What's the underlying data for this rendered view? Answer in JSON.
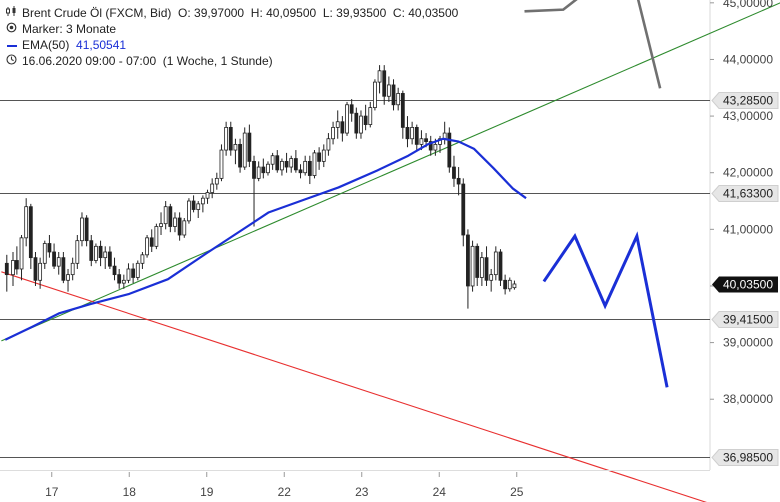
{
  "header": {
    "instrument": "Brent Crude Öl (FXCM, Bid)",
    "ohlc_o": "O: 39,97000",
    "ohlc_h": "H: 40,09500",
    "ohlc_l": "L: 39,93500",
    "ohlc_c": "C: 40,03500",
    "marker": "Marker: 3 Monate",
    "ema_label": "EMA(50)",
    "ema_value": "41,50541",
    "range": "16.06.2020 09:00 - 07:00",
    "interval": "(1 Woche, 1 Stunde)"
  },
  "icons": {
    "instrument": "candlestick-icon",
    "marker": "target-icon",
    "time": "clock-icon"
  },
  "colors": {
    "ema": "#1a2fd6",
    "support_trend": "#2e8b2e",
    "resistance_trend": "#e83030",
    "projection_gray": "#707070",
    "projection_blue": "#1a2fd6",
    "candle": "#222222",
    "level_line": "#555555",
    "current_price_bg": "#111111"
  },
  "chart_data": {
    "type": "candlestick",
    "y_axis": {
      "ylim": [
        36.75,
        45.05
      ],
      "ticks": [
        38,
        39,
        40,
        41,
        42,
        43,
        44,
        45
      ],
      "tick_labels": [
        "38,00000",
        "39,00000",
        "40,00000",
        "41,00000",
        "42,00000",
        "43,00000",
        "44,00000",
        "45,00000"
      ]
    },
    "x_axis": {
      "labels": [
        "17",
        "18",
        "19",
        "22",
        "23",
        "24",
        "25"
      ],
      "day_index": [
        0.5,
        1.5,
        2.5,
        3.5,
        4.5,
        5.5,
        6.5
      ]
    },
    "horizontal_levels": [
      {
        "value": 43.285,
        "label": "43,28500"
      },
      {
        "value": 41.633,
        "label": "41,63300"
      },
      {
        "value": 39.415,
        "label": "39,41500"
      },
      {
        "value": 36.985,
        "label": "36,98500"
      }
    ],
    "current_price": {
      "value": 40.035,
      "label": "40,03500"
    },
    "trendlines": [
      {
        "name": "support",
        "color_key": "support_trend",
        "points": [
          [
            -0.15,
            39.03
          ],
          [
            9.9,
            45.0
          ]
        ]
      },
      {
        "name": "resistance",
        "color_key": "resistance_trend",
        "points": [
          [
            -0.15,
            40.25
          ],
          [
            9.3,
            36.02
          ]
        ]
      }
    ],
    "projections": [
      {
        "name": "projection-gray",
        "color_key": "projection_gray",
        "points": [
          [
            6.6,
            44.85
          ],
          [
            7.1,
            44.88
          ],
          [
            7.4,
            45.2
          ],
          [
            8.05,
            45.15
          ],
          [
            8.35,
            43.49
          ]
        ]
      },
      {
        "name": "projection-blue",
        "color_key": "projection_blue",
        "points": [
          [
            6.85,
            40.08
          ],
          [
            7.25,
            40.88
          ],
          [
            7.64,
            39.65
          ],
          [
            8.05,
            40.88
          ],
          [
            8.44,
            38.21
          ]
        ]
      }
    ],
    "ema_series": [
      [
        -0.1,
        39.05
      ],
      [
        0.25,
        39.28
      ],
      [
        0.6,
        39.52
      ],
      [
        1.0,
        39.68
      ],
      [
        1.5,
        39.86
      ],
      [
        2.0,
        40.12
      ],
      [
        2.5,
        40.58
      ],
      [
        2.9,
        40.94
      ],
      [
        3.3,
        41.3
      ],
      [
        3.75,
        41.52
      ],
      [
        4.2,
        41.74
      ],
      [
        4.7,
        42.04
      ],
      [
        5.1,
        42.3
      ],
      [
        5.35,
        42.5
      ],
      [
        5.55,
        42.6
      ],
      [
        5.75,
        42.55
      ],
      [
        5.95,
        42.42
      ],
      [
        6.2,
        42.08
      ],
      [
        6.45,
        41.72
      ],
      [
        6.62,
        41.55
      ]
    ],
    "candles": [
      [
        -0.08,
        40.4,
        40.55,
        39.9,
        40.2
      ],
      [
        0.0,
        40.2,
        40.6,
        40.0,
        40.45
      ],
      [
        0.05,
        40.45,
        40.7,
        40.2,
        40.3
      ],
      [
        0.11,
        40.3,
        40.9,
        40.1,
        40.85
      ],
      [
        0.17,
        40.85,
        41.55,
        40.7,
        41.4
      ],
      [
        0.23,
        41.4,
        41.45,
        40.3,
        40.5
      ],
      [
        0.29,
        40.5,
        40.6,
        40.0,
        40.1
      ],
      [
        0.35,
        40.1,
        40.5,
        39.95,
        40.4
      ],
      [
        0.41,
        40.4,
        40.8,
        40.3,
        40.75
      ],
      [
        0.47,
        40.75,
        40.9,
        40.5,
        40.6
      ],
      [
        0.53,
        40.6,
        40.75,
        40.3,
        40.35
      ],
      [
        0.59,
        40.35,
        40.6,
        40.2,
        40.5
      ],
      [
        0.65,
        40.5,
        40.6,
        40.05,
        40.1
      ],
      [
        0.71,
        40.1,
        40.3,
        39.9,
        40.2
      ],
      [
        0.77,
        40.2,
        40.5,
        40.1,
        40.4
      ],
      [
        0.83,
        40.4,
        40.9,
        40.3,
        40.8
      ],
      [
        0.89,
        40.8,
        41.3,
        40.7,
        41.2
      ],
      [
        0.95,
        41.2,
        41.25,
        40.7,
        40.8
      ],
      [
        1.01,
        40.8,
        40.9,
        40.35,
        40.45
      ],
      [
        1.07,
        40.45,
        40.75,
        40.4,
        40.7
      ],
      [
        1.13,
        40.7,
        40.8,
        40.35,
        40.5
      ],
      [
        1.19,
        40.5,
        40.7,
        40.3,
        40.6
      ],
      [
        1.25,
        40.6,
        40.7,
        40.3,
        40.35
      ],
      [
        1.31,
        40.35,
        40.5,
        40.1,
        40.2
      ],
      [
        1.37,
        40.2,
        40.3,
        39.95,
        40.05
      ],
      [
        1.43,
        40.05,
        40.2,
        39.95,
        40.1
      ],
      [
        1.49,
        40.1,
        40.4,
        40.05,
        40.3
      ],
      [
        1.55,
        40.3,
        40.4,
        40.05,
        40.15
      ],
      [
        1.61,
        40.15,
        40.45,
        40.1,
        40.4
      ],
      [
        1.67,
        40.4,
        40.6,
        40.3,
        40.55
      ],
      [
        1.73,
        40.55,
        40.9,
        40.5,
        40.85
      ],
      [
        1.79,
        40.85,
        41.0,
        40.6,
        40.7
      ],
      [
        1.85,
        40.7,
        41.1,
        40.65,
        41.05
      ],
      [
        1.91,
        41.05,
        41.3,
        40.9,
        41.1
      ],
      [
        1.97,
        41.1,
        41.5,
        41.0,
        41.4
      ],
      [
        2.03,
        41.4,
        41.45,
        40.95,
        41.05
      ],
      [
        2.09,
        41.05,
        41.3,
        40.95,
        41.2
      ],
      [
        2.15,
        41.2,
        41.3,
        40.8,
        40.9
      ],
      [
        2.21,
        40.9,
        41.2,
        40.85,
        41.15
      ],
      [
        2.27,
        41.15,
        41.55,
        41.1,
        41.5
      ],
      [
        2.33,
        41.5,
        41.6,
        41.3,
        41.35
      ],
      [
        2.39,
        41.35,
        41.5,
        41.2,
        41.45
      ],
      [
        2.45,
        41.45,
        41.6,
        41.3,
        41.55
      ],
      [
        2.51,
        41.55,
        41.7,
        41.45,
        41.65
      ],
      [
        2.57,
        41.65,
        41.9,
        41.55,
        41.8
      ],
      [
        2.63,
        41.8,
        42.0,
        41.7,
        41.9
      ],
      [
        2.69,
        41.9,
        42.5,
        41.85,
        42.4
      ],
      [
        2.75,
        42.4,
        42.9,
        42.3,
        42.8
      ],
      [
        2.81,
        42.8,
        42.9,
        42.3,
        42.4
      ],
      [
        2.87,
        42.4,
        42.6,
        42.15,
        42.5
      ],
      [
        2.93,
        42.5,
        42.6,
        42.0,
        42.1
      ],
      [
        2.99,
        42.1,
        42.8,
        42.05,
        42.7
      ],
      [
        3.05,
        42.7,
        42.85,
        42.1,
        42.2
      ],
      [
        3.11,
        42.2,
        42.3,
        41.05,
        41.9
      ],
      [
        3.17,
        41.9,
        42.2,
        41.85,
        42.1
      ],
      [
        3.23,
        42.1,
        42.25,
        41.9,
        42.0
      ],
      [
        3.29,
        42.0,
        42.2,
        41.95,
        42.15
      ],
      [
        3.35,
        42.15,
        42.35,
        42.05,
        42.3
      ],
      [
        3.41,
        42.3,
        42.4,
        42.0,
        42.05
      ],
      [
        3.47,
        42.05,
        42.25,
        41.95,
        42.2
      ],
      [
        3.53,
        42.2,
        42.35,
        42.0,
        42.1
      ],
      [
        3.59,
        42.1,
        42.3,
        42.0,
        42.25
      ],
      [
        3.65,
        42.25,
        42.4,
        42.0,
        42.05
      ],
      [
        3.71,
        42.05,
        42.15,
        41.9,
        42.0
      ],
      [
        3.77,
        42.0,
        42.3,
        41.95,
        42.2
      ],
      [
        3.83,
        42.2,
        42.3,
        41.8,
        41.95
      ],
      [
        3.89,
        41.95,
        42.4,
        41.9,
        42.35
      ],
      [
        3.95,
        42.35,
        42.45,
        42.05,
        42.2
      ],
      [
        4.01,
        42.2,
        42.5,
        42.1,
        42.4
      ],
      [
        4.07,
        42.4,
        42.7,
        42.3,
        42.6
      ],
      [
        4.13,
        42.6,
        42.9,
        42.5,
        42.8
      ],
      [
        4.19,
        42.8,
        43.1,
        42.6,
        42.9
      ],
      [
        4.25,
        42.9,
        43.0,
        42.55,
        42.7
      ],
      [
        4.31,
        42.7,
        43.25,
        42.65,
        43.2
      ],
      [
        4.37,
        43.2,
        43.3,
        42.9,
        43.05
      ],
      [
        4.43,
        43.05,
        43.15,
        42.6,
        42.7
      ],
      [
        4.49,
        42.7,
        43.1,
        42.6,
        43.0
      ],
      [
        4.55,
        43.0,
        43.2,
        42.75,
        42.85
      ],
      [
        4.61,
        42.85,
        43.25,
        42.8,
        43.15
      ],
      [
        4.67,
        43.15,
        43.65,
        43.1,
        43.6
      ],
      [
        4.73,
        43.6,
        43.9,
        43.4,
        43.8
      ],
      [
        4.79,
        43.8,
        43.9,
        43.2,
        43.35
      ],
      [
        4.85,
        43.35,
        43.7,
        43.25,
        43.55
      ],
      [
        4.91,
        43.55,
        43.65,
        43.1,
        43.2
      ],
      [
        4.97,
        43.2,
        43.5,
        43.1,
        43.4
      ],
      [
        5.03,
        43.4,
        43.45,
        42.6,
        42.8
      ],
      [
        5.09,
        42.8,
        43.0,
        42.45,
        42.6
      ],
      [
        5.15,
        42.6,
        42.9,
        42.5,
        42.8
      ],
      [
        5.21,
        42.8,
        42.85,
        42.4,
        42.5
      ],
      [
        5.27,
        42.5,
        42.75,
        42.4,
        42.6
      ],
      [
        5.33,
        42.6,
        42.7,
        42.45,
        42.55
      ],
      [
        5.39,
        42.55,
        42.65,
        42.3,
        42.4
      ],
      [
        5.45,
        42.4,
        42.6,
        42.3,
        42.5
      ],
      [
        5.51,
        42.5,
        42.65,
        42.35,
        42.6
      ],
      [
        5.57,
        42.6,
        42.9,
        42.5,
        42.7
      ],
      [
        5.63,
        42.7,
        42.8,
        42.0,
        42.1
      ],
      [
        5.69,
        42.1,
        42.3,
        41.75,
        41.9
      ],
      [
        5.75,
        41.9,
        42.1,
        41.6,
        41.8
      ],
      [
        5.81,
        41.8,
        41.9,
        40.7,
        40.9
      ],
      [
        5.87,
        40.9,
        41.0,
        39.6,
        40.0
      ],
      [
        5.93,
        40.0,
        40.8,
        39.9,
        40.7
      ],
      [
        5.99,
        40.7,
        40.75,
        40.0,
        40.15
      ],
      [
        6.05,
        40.15,
        40.6,
        40.0,
        40.5
      ],
      [
        6.11,
        40.5,
        40.7,
        40.0,
        40.1
      ],
      [
        6.17,
        40.1,
        40.3,
        39.9,
        40.2
      ],
      [
        6.23,
        40.2,
        40.7,
        40.1,
        40.6
      ],
      [
        6.29,
        40.6,
        40.65,
        40.0,
        40.1
      ],
      [
        6.35,
        40.1,
        40.2,
        39.85,
        39.95
      ],
      [
        6.41,
        39.95,
        40.15,
        39.9,
        40.1
      ],
      [
        6.47,
        39.97,
        40.095,
        39.935,
        40.035
      ]
    ]
  }
}
